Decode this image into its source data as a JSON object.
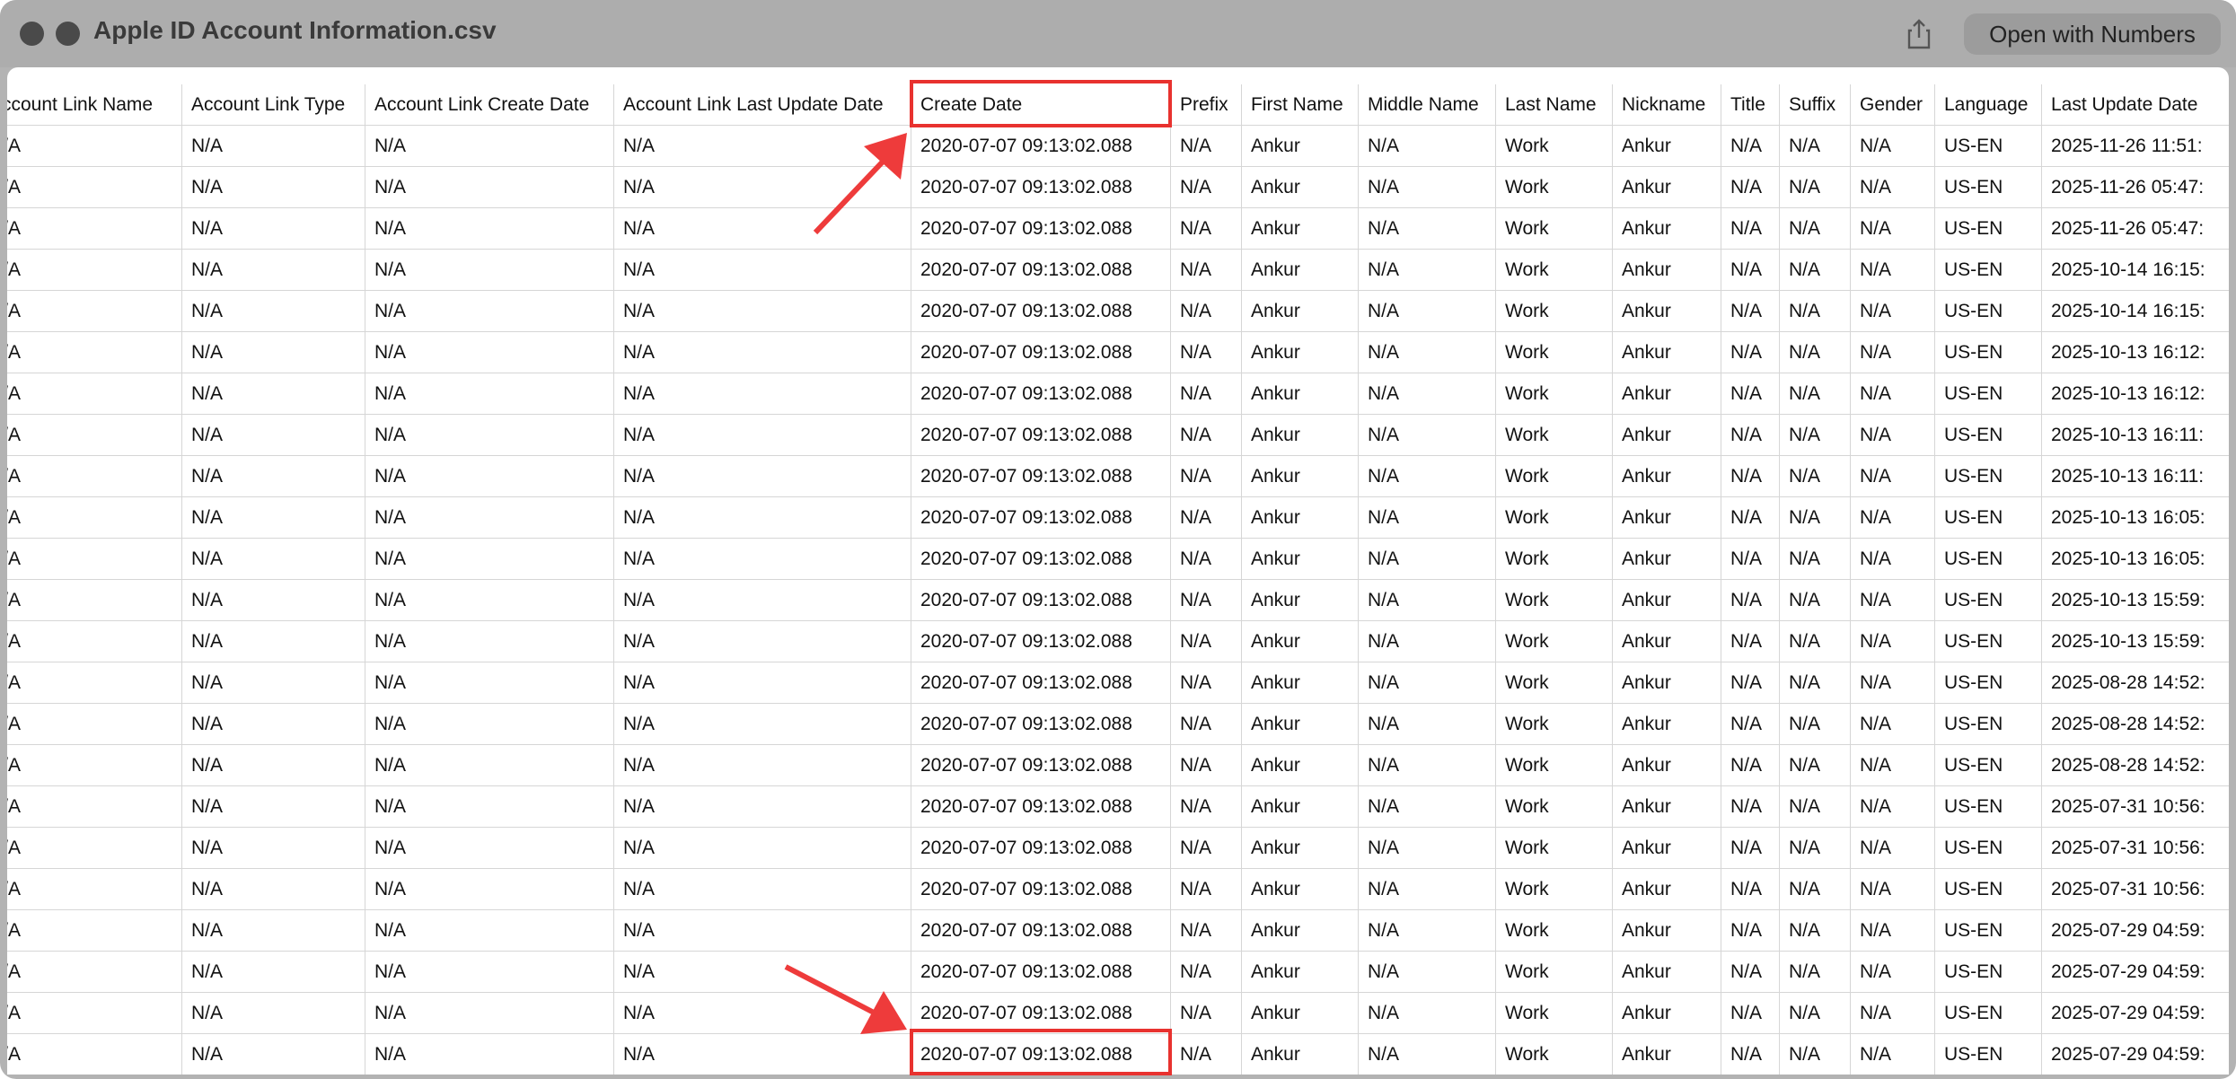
{
  "window": {
    "title": "Apple ID Account Information.csv",
    "button": "Open with Numbers"
  },
  "table": {
    "headers": [
      "Account Link Name",
      "Account Link Type",
      "Account Link Create Date",
      "Account Link Last Update Date",
      "Create Date",
      "Prefix",
      "First Name",
      "Middle Name",
      "Last Name",
      "Nickname",
      "Title",
      "Suffix",
      "Gender",
      "Language",
      "Last Update Date"
    ],
    "rows": [
      [
        "N/A",
        "N/A",
        "N/A",
        "N/A",
        "2020-07-07 09:13:02.088",
        "N/A",
        "Ankur",
        "N/A",
        "Work",
        "Ankur",
        "N/A",
        "N/A",
        "N/A",
        "US-EN",
        "2025-11-26 11:51:"
      ],
      [
        "N/A",
        "N/A",
        "N/A",
        "N/A",
        "2020-07-07 09:13:02.088",
        "N/A",
        "Ankur",
        "N/A",
        "Work",
        "Ankur",
        "N/A",
        "N/A",
        "N/A",
        "US-EN",
        "2025-11-26 05:47:"
      ],
      [
        "N/A",
        "N/A",
        "N/A",
        "N/A",
        "2020-07-07 09:13:02.088",
        "N/A",
        "Ankur",
        "N/A",
        "Work",
        "Ankur",
        "N/A",
        "N/A",
        "N/A",
        "US-EN",
        "2025-11-26 05:47:"
      ],
      [
        "N/A",
        "N/A",
        "N/A",
        "N/A",
        "2020-07-07 09:13:02.088",
        "N/A",
        "Ankur",
        "N/A",
        "Work",
        "Ankur",
        "N/A",
        "N/A",
        "N/A",
        "US-EN",
        "2025-10-14 16:15:"
      ],
      [
        "N/A",
        "N/A",
        "N/A",
        "N/A",
        "2020-07-07 09:13:02.088",
        "N/A",
        "Ankur",
        "N/A",
        "Work",
        "Ankur",
        "N/A",
        "N/A",
        "N/A",
        "US-EN",
        "2025-10-14 16:15:"
      ],
      [
        "N/A",
        "N/A",
        "N/A",
        "N/A",
        "2020-07-07 09:13:02.088",
        "N/A",
        "Ankur",
        "N/A",
        "Work",
        "Ankur",
        "N/A",
        "N/A",
        "N/A",
        "US-EN",
        "2025-10-13 16:12:"
      ],
      [
        "N/A",
        "N/A",
        "N/A",
        "N/A",
        "2020-07-07 09:13:02.088",
        "N/A",
        "Ankur",
        "N/A",
        "Work",
        "Ankur",
        "N/A",
        "N/A",
        "N/A",
        "US-EN",
        "2025-10-13 16:12:"
      ],
      [
        "N/A",
        "N/A",
        "N/A",
        "N/A",
        "2020-07-07 09:13:02.088",
        "N/A",
        "Ankur",
        "N/A",
        "Work",
        "Ankur",
        "N/A",
        "N/A",
        "N/A",
        "US-EN",
        "2025-10-13 16:11:"
      ],
      [
        "N/A",
        "N/A",
        "N/A",
        "N/A",
        "2020-07-07 09:13:02.088",
        "N/A",
        "Ankur",
        "N/A",
        "Work",
        "Ankur",
        "N/A",
        "N/A",
        "N/A",
        "US-EN",
        "2025-10-13 16:11:"
      ],
      [
        "N/A",
        "N/A",
        "N/A",
        "N/A",
        "2020-07-07 09:13:02.088",
        "N/A",
        "Ankur",
        "N/A",
        "Work",
        "Ankur",
        "N/A",
        "N/A",
        "N/A",
        "US-EN",
        "2025-10-13 16:05:"
      ],
      [
        "N/A",
        "N/A",
        "N/A",
        "N/A",
        "2020-07-07 09:13:02.088",
        "N/A",
        "Ankur",
        "N/A",
        "Work",
        "Ankur",
        "N/A",
        "N/A",
        "N/A",
        "US-EN",
        "2025-10-13 16:05:"
      ],
      [
        "N/A",
        "N/A",
        "N/A",
        "N/A",
        "2020-07-07 09:13:02.088",
        "N/A",
        "Ankur",
        "N/A",
        "Work",
        "Ankur",
        "N/A",
        "N/A",
        "N/A",
        "US-EN",
        "2025-10-13 15:59:"
      ],
      [
        "N/A",
        "N/A",
        "N/A",
        "N/A",
        "2020-07-07 09:13:02.088",
        "N/A",
        "Ankur",
        "N/A",
        "Work",
        "Ankur",
        "N/A",
        "N/A",
        "N/A",
        "US-EN",
        "2025-10-13 15:59:"
      ],
      [
        "N/A",
        "N/A",
        "N/A",
        "N/A",
        "2020-07-07 09:13:02.088",
        "N/A",
        "Ankur",
        "N/A",
        "Work",
        "Ankur",
        "N/A",
        "N/A",
        "N/A",
        "US-EN",
        "2025-08-28 14:52:"
      ],
      [
        "N/A",
        "N/A",
        "N/A",
        "N/A",
        "2020-07-07 09:13:02.088",
        "N/A",
        "Ankur",
        "N/A",
        "Work",
        "Ankur",
        "N/A",
        "N/A",
        "N/A",
        "US-EN",
        "2025-08-28 14:52:"
      ],
      [
        "N/A",
        "N/A",
        "N/A",
        "N/A",
        "2020-07-07 09:13:02.088",
        "N/A",
        "Ankur",
        "N/A",
        "Work",
        "Ankur",
        "N/A",
        "N/A",
        "N/A",
        "US-EN",
        "2025-08-28 14:52:"
      ],
      [
        "N/A",
        "N/A",
        "N/A",
        "N/A",
        "2020-07-07 09:13:02.088",
        "N/A",
        "Ankur",
        "N/A",
        "Work",
        "Ankur",
        "N/A",
        "N/A",
        "N/A",
        "US-EN",
        "2025-07-31 10:56:"
      ],
      [
        "N/A",
        "N/A",
        "N/A",
        "N/A",
        "2020-07-07 09:13:02.088",
        "N/A",
        "Ankur",
        "N/A",
        "Work",
        "Ankur",
        "N/A",
        "N/A",
        "N/A",
        "US-EN",
        "2025-07-31 10:56:"
      ],
      [
        "N/A",
        "N/A",
        "N/A",
        "N/A",
        "2020-07-07 09:13:02.088",
        "N/A",
        "Ankur",
        "N/A",
        "Work",
        "Ankur",
        "N/A",
        "N/A",
        "N/A",
        "US-EN",
        "2025-07-31 10:56:"
      ],
      [
        "N/A",
        "N/A",
        "N/A",
        "N/A",
        "2020-07-07 09:13:02.088",
        "N/A",
        "Ankur",
        "N/A",
        "Work",
        "Ankur",
        "N/A",
        "N/A",
        "N/A",
        "US-EN",
        "2025-07-29 04:59:"
      ],
      [
        "N/A",
        "N/A",
        "N/A",
        "N/A",
        "2020-07-07 09:13:02.088",
        "N/A",
        "Ankur",
        "N/A",
        "Work",
        "Ankur",
        "N/A",
        "N/A",
        "N/A",
        "US-EN",
        "2025-07-29 04:59:"
      ],
      [
        "N/A",
        "N/A",
        "N/A",
        "N/A",
        "2020-07-07 09:13:02.088",
        "N/A",
        "Ankur",
        "N/A",
        "Work",
        "Ankur",
        "N/A",
        "N/A",
        "N/A",
        "US-EN",
        "2025-07-29 04:59:"
      ],
      [
        "N/A",
        "N/A",
        "N/A",
        "N/A",
        "2020-07-07 09:13:02.088",
        "N/A",
        "Ankur",
        "N/A",
        "Work",
        "Ankur",
        "N/A",
        "N/A",
        "N/A",
        "US-EN",
        "2025-07-29 04:59:"
      ]
    ]
  }
}
